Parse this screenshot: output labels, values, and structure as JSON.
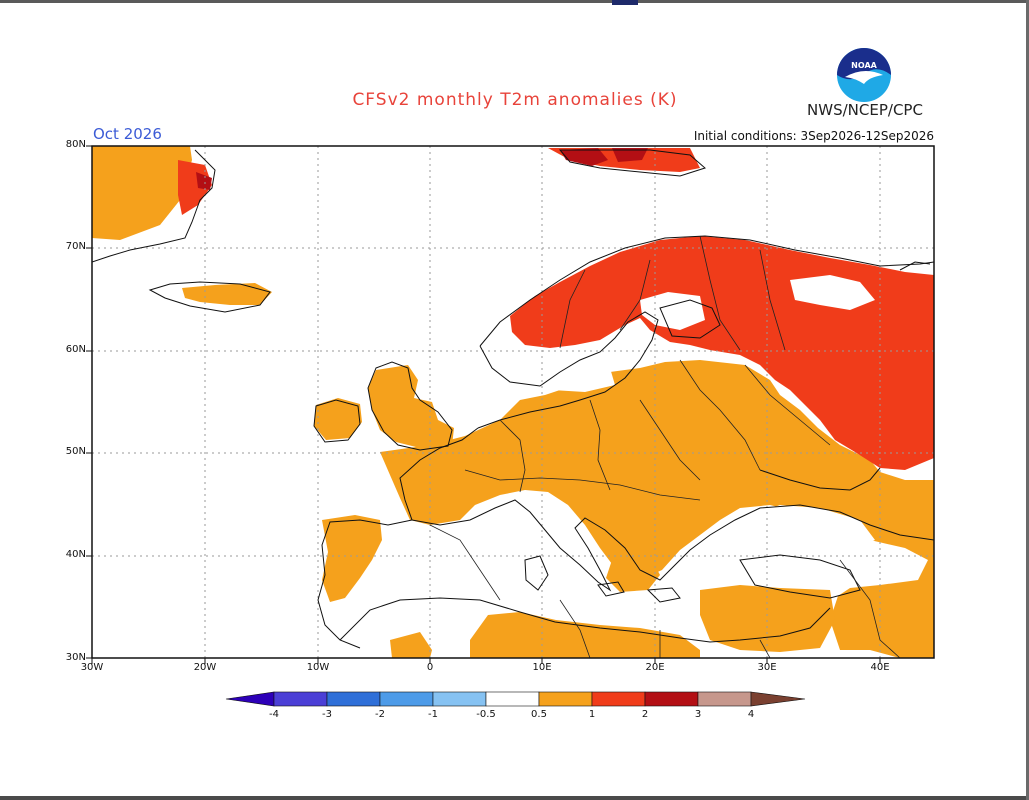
{
  "title": "CFSv2 monthly T2m anomalies (K)",
  "agency": "NWS/NCEP/CPC",
  "logo_text": "NOAA",
  "month": "Oct 2026",
  "initial_conditions": "Initial conditions: 3Sep2026-12Sep2026",
  "lat_labels": [
    "80N",
    "70N",
    "60N",
    "50N",
    "40N",
    "30N"
  ],
  "lon_labels": [
    "30W",
    "20W",
    "10W",
    "0",
    "10E",
    "20E",
    "30E",
    "40E"
  ],
  "colorbar": {
    "labels": [
      "-4",
      "-3",
      "-2",
      "-1",
      "-0.5",
      "0.5",
      "1",
      "2",
      "3",
      "4"
    ],
    "colors": [
      "#2d00b8",
      "#4b3fd6",
      "#2f6fd8",
      "#4d9be8",
      "#86c2f2",
      "#ffffff",
      "#f5a11c",
      "#f03c1a",
      "#b30f14",
      "#c6978c",
      "#7a4030"
    ]
  },
  "colors": {
    "anomaly_0_5_1": "#f5a11c",
    "anomaly_1_2": "#f03c1a",
    "anomaly_2_3": "#b30f14",
    "title": "#e8433a",
    "month": "#3b5bd6"
  }
}
